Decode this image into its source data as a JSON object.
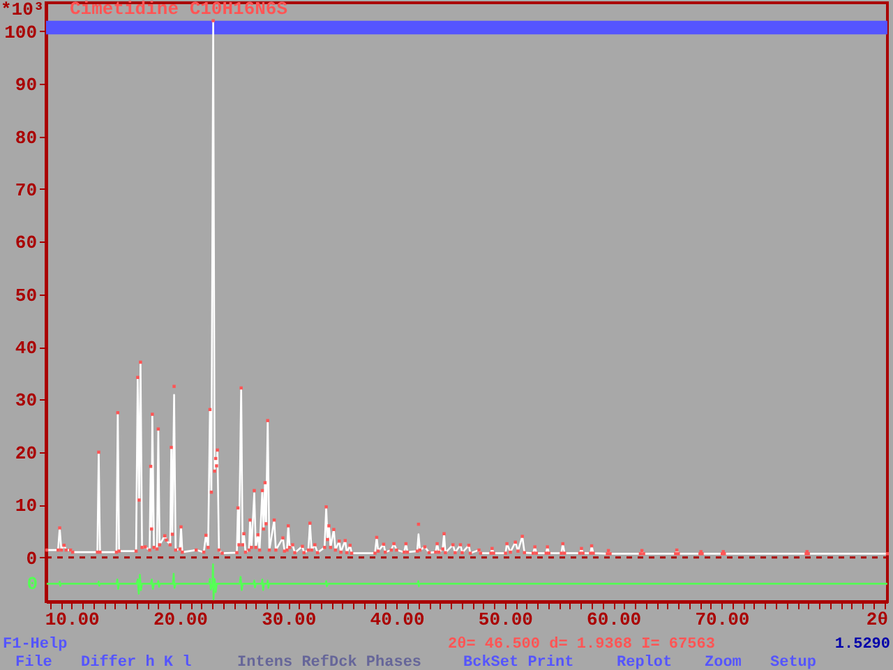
{
  "chart_data": {
    "type": "line",
    "title": "Cimetidine C10H16N6S",
    "xlabel": "2θ",
    "ylabel": "*10³",
    "xlim": [
      7.64,
      85.3
    ],
    "ylim": [
      -8.4,
      105.4
    ],
    "xticks": [
      {
        "value": 8,
        "label": null
      },
      {
        "value": 9,
        "label": null
      },
      {
        "value": 10,
        "label": "10.00"
      },
      {
        "value": 11,
        "label": null
      },
      {
        "value": 12,
        "label": null
      },
      {
        "value": 13,
        "label": null
      },
      {
        "value": 14,
        "label": null
      },
      {
        "value": 15,
        "label": null
      },
      {
        "value": 16,
        "label": null
      },
      {
        "value": 17,
        "label": null
      },
      {
        "value": 18,
        "label": null
      },
      {
        "value": 19,
        "label": null
      },
      {
        "value": 20,
        "label": "20.00"
      },
      {
        "value": 21,
        "label": null
      },
      {
        "value": 22,
        "label": null
      },
      {
        "value": 23,
        "label": null
      },
      {
        "value": 24,
        "label": null
      },
      {
        "value": 25,
        "label": null
      },
      {
        "value": 26,
        "label": null
      },
      {
        "value": 27,
        "label": null
      },
      {
        "value": 28,
        "label": null
      },
      {
        "value": 29,
        "label": null
      },
      {
        "value": 30,
        "label": "30.00"
      },
      {
        "value": 31,
        "label": null
      },
      {
        "value": 32,
        "label": null
      },
      {
        "value": 33,
        "label": null
      },
      {
        "value": 34,
        "label": null
      },
      {
        "value": 35,
        "label": null
      },
      {
        "value": 36,
        "label": null
      },
      {
        "value": 37,
        "label": null
      },
      {
        "value": 38,
        "label": null
      },
      {
        "value": 39,
        "label": null
      },
      {
        "value": 40,
        "label": "40.00"
      },
      {
        "value": 41,
        "label": null
      },
      {
        "value": 42,
        "label": null
      },
      {
        "value": 43,
        "label": null
      },
      {
        "value": 44,
        "label": null
      },
      {
        "value": 45,
        "label": null
      },
      {
        "value": 46,
        "label": null
      },
      {
        "value": 47,
        "label": null
      },
      {
        "value": 48,
        "label": null
      },
      {
        "value": 49,
        "label": null
      },
      {
        "value": 50,
        "label": "50.00"
      },
      {
        "value": 51,
        "label": null
      },
      {
        "value": 52,
        "label": null
      },
      {
        "value": 53,
        "label": null
      },
      {
        "value": 54,
        "label": null
      },
      {
        "value": 55,
        "label": null
      },
      {
        "value": 56,
        "label": null
      },
      {
        "value": 57,
        "label": null
      },
      {
        "value": 58,
        "label": null
      },
      {
        "value": 59,
        "label": null
      },
      {
        "value": 60,
        "label": "60.00"
      },
      {
        "value": 61,
        "label": null
      },
      {
        "value": 62,
        "label": null
      },
      {
        "value": 63,
        "label": null
      },
      {
        "value": 64,
        "label": null
      },
      {
        "value": 65,
        "label": null
      },
      {
        "value": 66,
        "label": null
      },
      {
        "value": 67,
        "label": null
      },
      {
        "value": 68,
        "label": null
      },
      {
        "value": 69,
        "label": null
      },
      {
        "value": 70,
        "label": "70.00"
      },
      {
        "value": 71,
        "label": null
      },
      {
        "value": 72,
        "label": null
      },
      {
        "value": 73,
        "label": null
      },
      {
        "value": 74,
        "label": null
      },
      {
        "value": 75,
        "label": null
      },
      {
        "value": 76,
        "label": null
      },
      {
        "value": 77,
        "label": null
      },
      {
        "value": 78,
        "label": null
      },
      {
        "value": 79,
        "label": null
      },
      {
        "value": 80,
        "label": null
      },
      {
        "value": 81,
        "label": null
      },
      {
        "value": 82,
        "label": null
      },
      {
        "value": 83,
        "label": null
      },
      {
        "value": 84,
        "label": null
      },
      {
        "value": 85,
        "label": null
      }
    ],
    "yticks": [
      0,
      10,
      20,
      30,
      40,
      50,
      60,
      70,
      80,
      90,
      100
    ],
    "x": [
      7.7,
      8.75,
      8.9,
      9.05,
      9.3,
      9.5,
      9.9,
      10.1,
      12.38,
      12.5,
      12.62,
      14.14,
      14.26,
      14.38,
      15.95,
      16.1,
      16.23,
      16.36,
      16.5,
      16.8,
      17.2,
      17.3,
      17.38,
      17.45,
      17.6,
      17.88,
      18.0,
      18.12,
      18.6,
      18.75,
      19.1,
      19.2,
      19.3,
      19.46,
      19.6,
      20.0,
      20.1,
      20.22,
      21.5,
      22.2,
      22.4,
      22.6,
      22.77,
      22.9,
      23.07,
      23.2,
      23.3,
      23.38,
      23.46,
      23.6,
      23.9,
      25.25,
      25.35,
      25.45,
      25.65,
      25.78,
      25.9,
      26.05,
      26.38,
      26.47,
      26.6,
      26.86,
      27.0,
      27.2,
      27.35,
      27.6,
      27.72,
      27.85,
      27.95,
      28.1,
      28.25,
      28.7,
      28.85,
      29.5,
      29.65,
      29.88,
      30.0,
      30.12,
      30.4,
      30.6,
      31.3,
      31.45,
      31.85,
      32.0,
      32.15,
      32.45,
      32.7,
      33.35,
      33.5,
      33.62,
      33.75,
      33.9,
      34.2,
      34.35,
      34.7,
      34.85,
      35.25,
      35.4,
      35.7,
      35.85,
      38.0,
      38.16,
      38.3,
      38.8,
      38.95,
      39.5,
      39.75,
      40.0,
      40.7,
      40.86,
      41.0,
      41.9,
      42.02,
      42.15,
      42.6,
      43.0,
      43.6,
      43.74,
      43.9,
      44.25,
      44.38,
      44.5,
      45.2,
      45.4,
      45.89,
      46.05,
      46.66,
      46.8,
      47.6,
      47.75,
      48.7,
      48.81,
      48.95,
      50.05,
      50.18,
      50.5,
      50.96,
      51.2,
      51.6,
      51.8,
      52.6,
      52.76,
      52.9,
      53.8,
      53.92,
      54.05,
      55.2,
      55.34,
      55.5,
      56.9,
      57.06,
      57.2,
      57.9,
      58.0,
      58.15,
      59.45,
      59.55,
      59.7,
      62.5,
      62.64,
      62.8,
      65.75,
      65.86,
      66.0,
      68.0,
      68.09,
      68.2,
      70.05,
      70.15,
      70.25,
      77.8,
      77.88,
      78.0,
      85.3
    ],
    "series": [
      {
        "type": "line",
        "color": "#ffffff",
        "values": [
          1.4,
          1.4,
          5.6,
          1.4,
          2.3,
          1.4,
          1.4,
          1.0,
          1.0,
          20.0,
          1.0,
          1.0,
          27.5,
          1.2,
          1.2,
          34.2,
          10.9,
          36.9,
          1.9,
          2.0,
          1.4,
          17.3,
          5.4,
          27.2,
          1.9,
          1.6,
          24.1,
          2.4,
          4.1,
          3.3,
          2.4,
          20.9,
          4.4,
          30.9,
          1.4,
          1.6,
          5.8,
          1.0,
          1.4,
          1.0,
          4.2,
          1.9,
          28.1,
          12.4,
          102,
          16.4,
          18.8,
          17.4,
          20.4,
          1.4,
          0.8,
          0.9,
          9.4,
          2.4,
          32.2,
          2.4,
          4.5,
          1.0,
          1.4,
          7.1,
          1.9,
          12.2,
          1.9,
          4.3,
          1.4,
          12.7,
          5.4,
          14.2,
          6.4,
          26.0,
          1.4,
          7.1,
          1.4,
          3.7,
          1.2,
          1.4,
          6.0,
          1.9,
          2.4,
          0.9,
          2.1,
          0.9,
          1.4,
          6.5,
          1.4,
          2.4,
          0.9,
          1.9,
          9.6,
          3.4,
          6.0,
          1.9,
          5.3,
          1.4,
          3.1,
          1.0,
          3.2,
          0.9,
          2.3,
          0.8,
          0.8,
          3.8,
          1.2,
          2.5,
          1.0,
          1.4,
          2.6,
          1.4,
          1.0,
          2.6,
          1.0,
          1.2,
          4.4,
          1.4,
          2.0,
          0.9,
          1.0,
          2.6,
          1.0,
          1.6,
          4.5,
          0.9,
          2.4,
          0.9,
          2.4,
          0.9,
          2.3,
          0.8,
          1.4,
          0.8,
          0.8,
          1.7,
          0.8,
          0.8,
          2.6,
          1.0,
          2.9,
          1.2,
          4.0,
          0.9,
          0.8,
          2.0,
          0.8,
          0.8,
          2.0,
          0.8,
          0.8,
          2.6,
          0.8,
          0.8,
          1.7,
          0.8,
          0.8,
          2.2,
          0.8,
          0.7,
          1.3,
          0.7,
          0.7,
          1.3,
          0.7,
          0.7,
          1.4,
          0.7,
          0.7,
          1.1,
          0.7,
          0.7,
          1.1,
          0.7,
          0.7,
          1.1,
          0.7,
          0.7
        ]
      },
      {
        "type": "scatter",
        "color": "#ff5555",
        "marker": "square",
        "values": [
          1.4,
          1.4,
          5.6,
          1.4,
          2.3,
          1.4,
          1.4,
          1.0,
          1.0,
          20.0,
          1.0,
          1.0,
          27.5,
          1.2,
          1.2,
          34.2,
          10.9,
          37.1,
          1.9,
          2.0,
          1.4,
          17.3,
          5.4,
          27.2,
          1.9,
          1.6,
          24.4,
          2.4,
          4.1,
          3.3,
          2.4,
          20.9,
          4.4,
          32.5,
          1.4,
          1.6,
          5.8,
          1.0,
          1.4,
          1.0,
          4.2,
          1.9,
          28.1,
          12.4,
          102,
          16.4,
          18.8,
          17.4,
          20.4,
          1.4,
          0.8,
          0.9,
          9.4,
          2.4,
          32.2,
          2.4,
          4.5,
          1.0,
          1.4,
          7.1,
          1.9,
          12.7,
          1.9,
          4.3,
          1.4,
          12.7,
          5.4,
          14.2,
          6.4,
          26.0,
          1.4,
          7.1,
          1.4,
          3.7,
          1.2,
          1.4,
          6.0,
          1.9,
          2.4,
          0.9,
          2.1,
          0.9,
          1.4,
          6.5,
          1.4,
          2.4,
          0.9,
          1.9,
          9.6,
          3.4,
          6.0,
          1.9,
          5.3,
          1.4,
          3.1,
          1.0,
          3.2,
          0.9,
          2.3,
          0.8,
          0.8,
          3.8,
          1.2,
          2.5,
          1.0,
          1.4,
          2.6,
          1.4,
          1.0,
          2.6,
          1.0,
          1.2,
          6.3,
          1.4,
          2.0,
          0.9,
          1.0,
          2.6,
          1.0,
          1.6,
          4.5,
          0.9,
          2.4,
          0.9,
          2.4,
          0.9,
          2.3,
          0.8,
          1.4,
          0.8,
          0.8,
          1.7,
          0.8,
          0.8,
          2.6,
          1.0,
          2.9,
          1.2,
          4.0,
          0.9,
          0.8,
          2.0,
          0.8,
          0.8,
          2.0,
          0.8,
          0.8,
          2.6,
          0.8,
          0.8,
          1.7,
          0.8,
          0.8,
          2.2,
          0.8,
          0.7,
          1.3,
          0.7,
          0.7,
          1.3,
          0.7,
          0.7,
          1.4,
          0.7,
          0.7,
          1.1,
          0.7,
          0.7,
          1.1,
          0.7,
          0.7,
          1.1,
          0.7,
          0.7
        ]
      },
      {
        "type": "line",
        "color": "#55ff55",
        "x": [
          7.7,
          8.85,
          8.9,
          8.95,
          9.0,
          12.45,
          12.5,
          12.55,
          12.6,
          14.15,
          14.22,
          14.3,
          14.38,
          16.0,
          16.1,
          16.2,
          16.3,
          16.4,
          16.5,
          17.3,
          17.4,
          17.5,
          17.6,
          17.95,
          18.0,
          18.07,
          18.15,
          19.35,
          19.42,
          19.5,
          19.6,
          22.7,
          22.77,
          22.85,
          23.0,
          23.05,
          23.1,
          23.2,
          23.3,
          23.4,
          25.5,
          25.6,
          25.7,
          25.8,
          26.8,
          26.86,
          26.92,
          27.0,
          27.55,
          27.6,
          27.68,
          27.75,
          28.05,
          28.1,
          28.16,
          28.25,
          33.45,
          33.5,
          33.56,
          33.65,
          41.95,
          42.0,
          42.05,
          42.1,
          85.3
        ],
        "values": [
          -5.0,
          -5.0,
          -4.6,
          -5.4,
          -5.0,
          -5.0,
          -4.6,
          -5.4,
          -5.0,
          -5.0,
          -4.2,
          -6.0,
          -5.0,
          -5.0,
          -4.2,
          -6.9,
          -3.3,
          -6.2,
          -5.0,
          -5.0,
          -4.2,
          -6.0,
          -5.0,
          -5.0,
          -4.5,
          -5.6,
          -5.0,
          -5.0,
          -3.1,
          -5.8,
          -5.0,
          -5.0,
          -4.1,
          -6.1,
          -5.0,
          -1.3,
          -8.0,
          -4.1,
          -6.6,
          -5.0,
          -5.0,
          -3.7,
          -6.2,
          -5.0,
          -5.0,
          -4.4,
          -5.7,
          -5.0,
          -5.0,
          -4.2,
          -6.2,
          -5.0,
          -5.0,
          -4.4,
          -5.8,
          -5.0,
          -5.0,
          -4.5,
          -5.5,
          -5.0,
          -5.0,
          -4.5,
          -5.5,
          -5.0,
          -5.0
        ]
      }
    ],
    "bands": [
      {
        "axis": "y",
        "from": 99.4,
        "to": 102.0,
        "color": "#5555ff"
      }
    ],
    "ref_lines": [
      {
        "axis": "y",
        "value": 0,
        "color": "#aa0000",
        "line_style": "dashed"
      }
    ],
    "annotations": [
      "F1-Help",
      "2θ= 46.500 d= 1.9368 I= 67563",
      "1.5290",
      "File",
      "Differ h K l",
      "Intens RefDck Phases",
      "BckSet Print",
      "Replot",
      "Zoom",
      "Setup",
      "0"
    ]
  }
}
